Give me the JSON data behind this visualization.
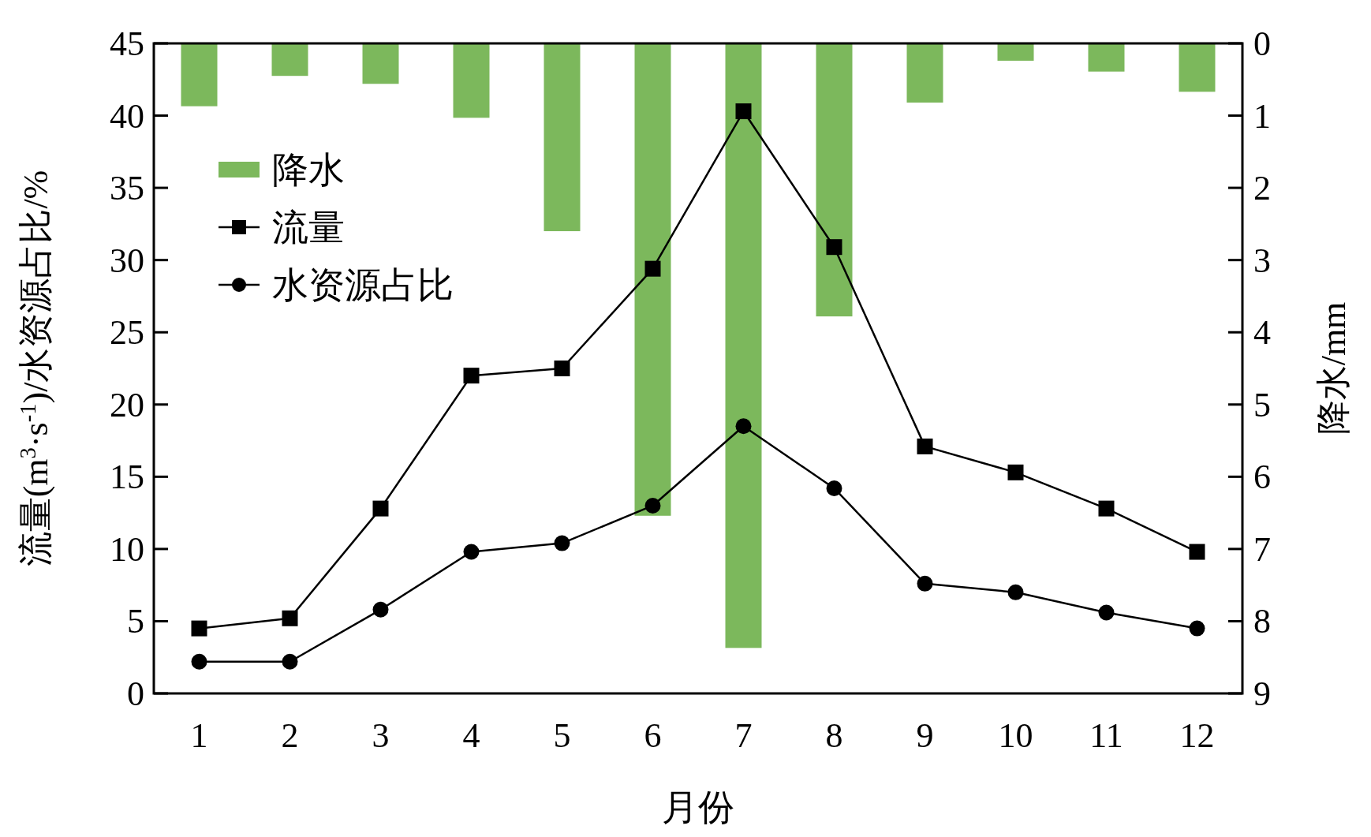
{
  "chart_data": {
    "type": "line",
    "xlabel": "月份",
    "ylabel": "流量(m$^{3}$·s$^{-1}$)/水资源占比/%",
    "y2label": "降水/mm",
    "categories": [
      "1",
      "2",
      "3",
      "4",
      "5",
      "6",
      "7",
      "8",
      "9",
      "10",
      "11",
      "12"
    ],
    "ylim": [
      0,
      45
    ],
    "yticks": [
      0,
      5,
      10,
      15,
      20,
      25,
      30,
      35,
      40,
      45
    ],
    "y2lim": [
      9,
      0
    ],
    "y2ticks": [
      0,
      1,
      2,
      3,
      4,
      5,
      6,
      7,
      8,
      9
    ],
    "legend": "top left",
    "series": [
      {
        "name": "降水",
        "type": "bar",
        "axis": "y2",
        "color": "#7cb85c",
        "values": [
          0.87,
          0.45,
          0.56,
          1.03,
          2.6,
          6.54,
          8.37,
          3.78,
          0.82,
          0.24,
          0.39,
          0.67
        ]
      },
      {
        "name": "流量",
        "color": "#000000",
        "marker": "square",
        "values": [
          4.5,
          5.2,
          12.8,
          22.0,
          22.5,
          29.4,
          40.3,
          30.9,
          17.1,
          15.3,
          12.8,
          9.8
        ]
      },
      {
        "name": "水资源占比",
        "color": "#000000",
        "marker": "circle",
        "values": [
          2.2,
          2.2,
          5.8,
          9.8,
          10.4,
          13.0,
          18.5,
          14.2,
          7.6,
          7.0,
          5.6,
          4.5
        ]
      }
    ]
  }
}
